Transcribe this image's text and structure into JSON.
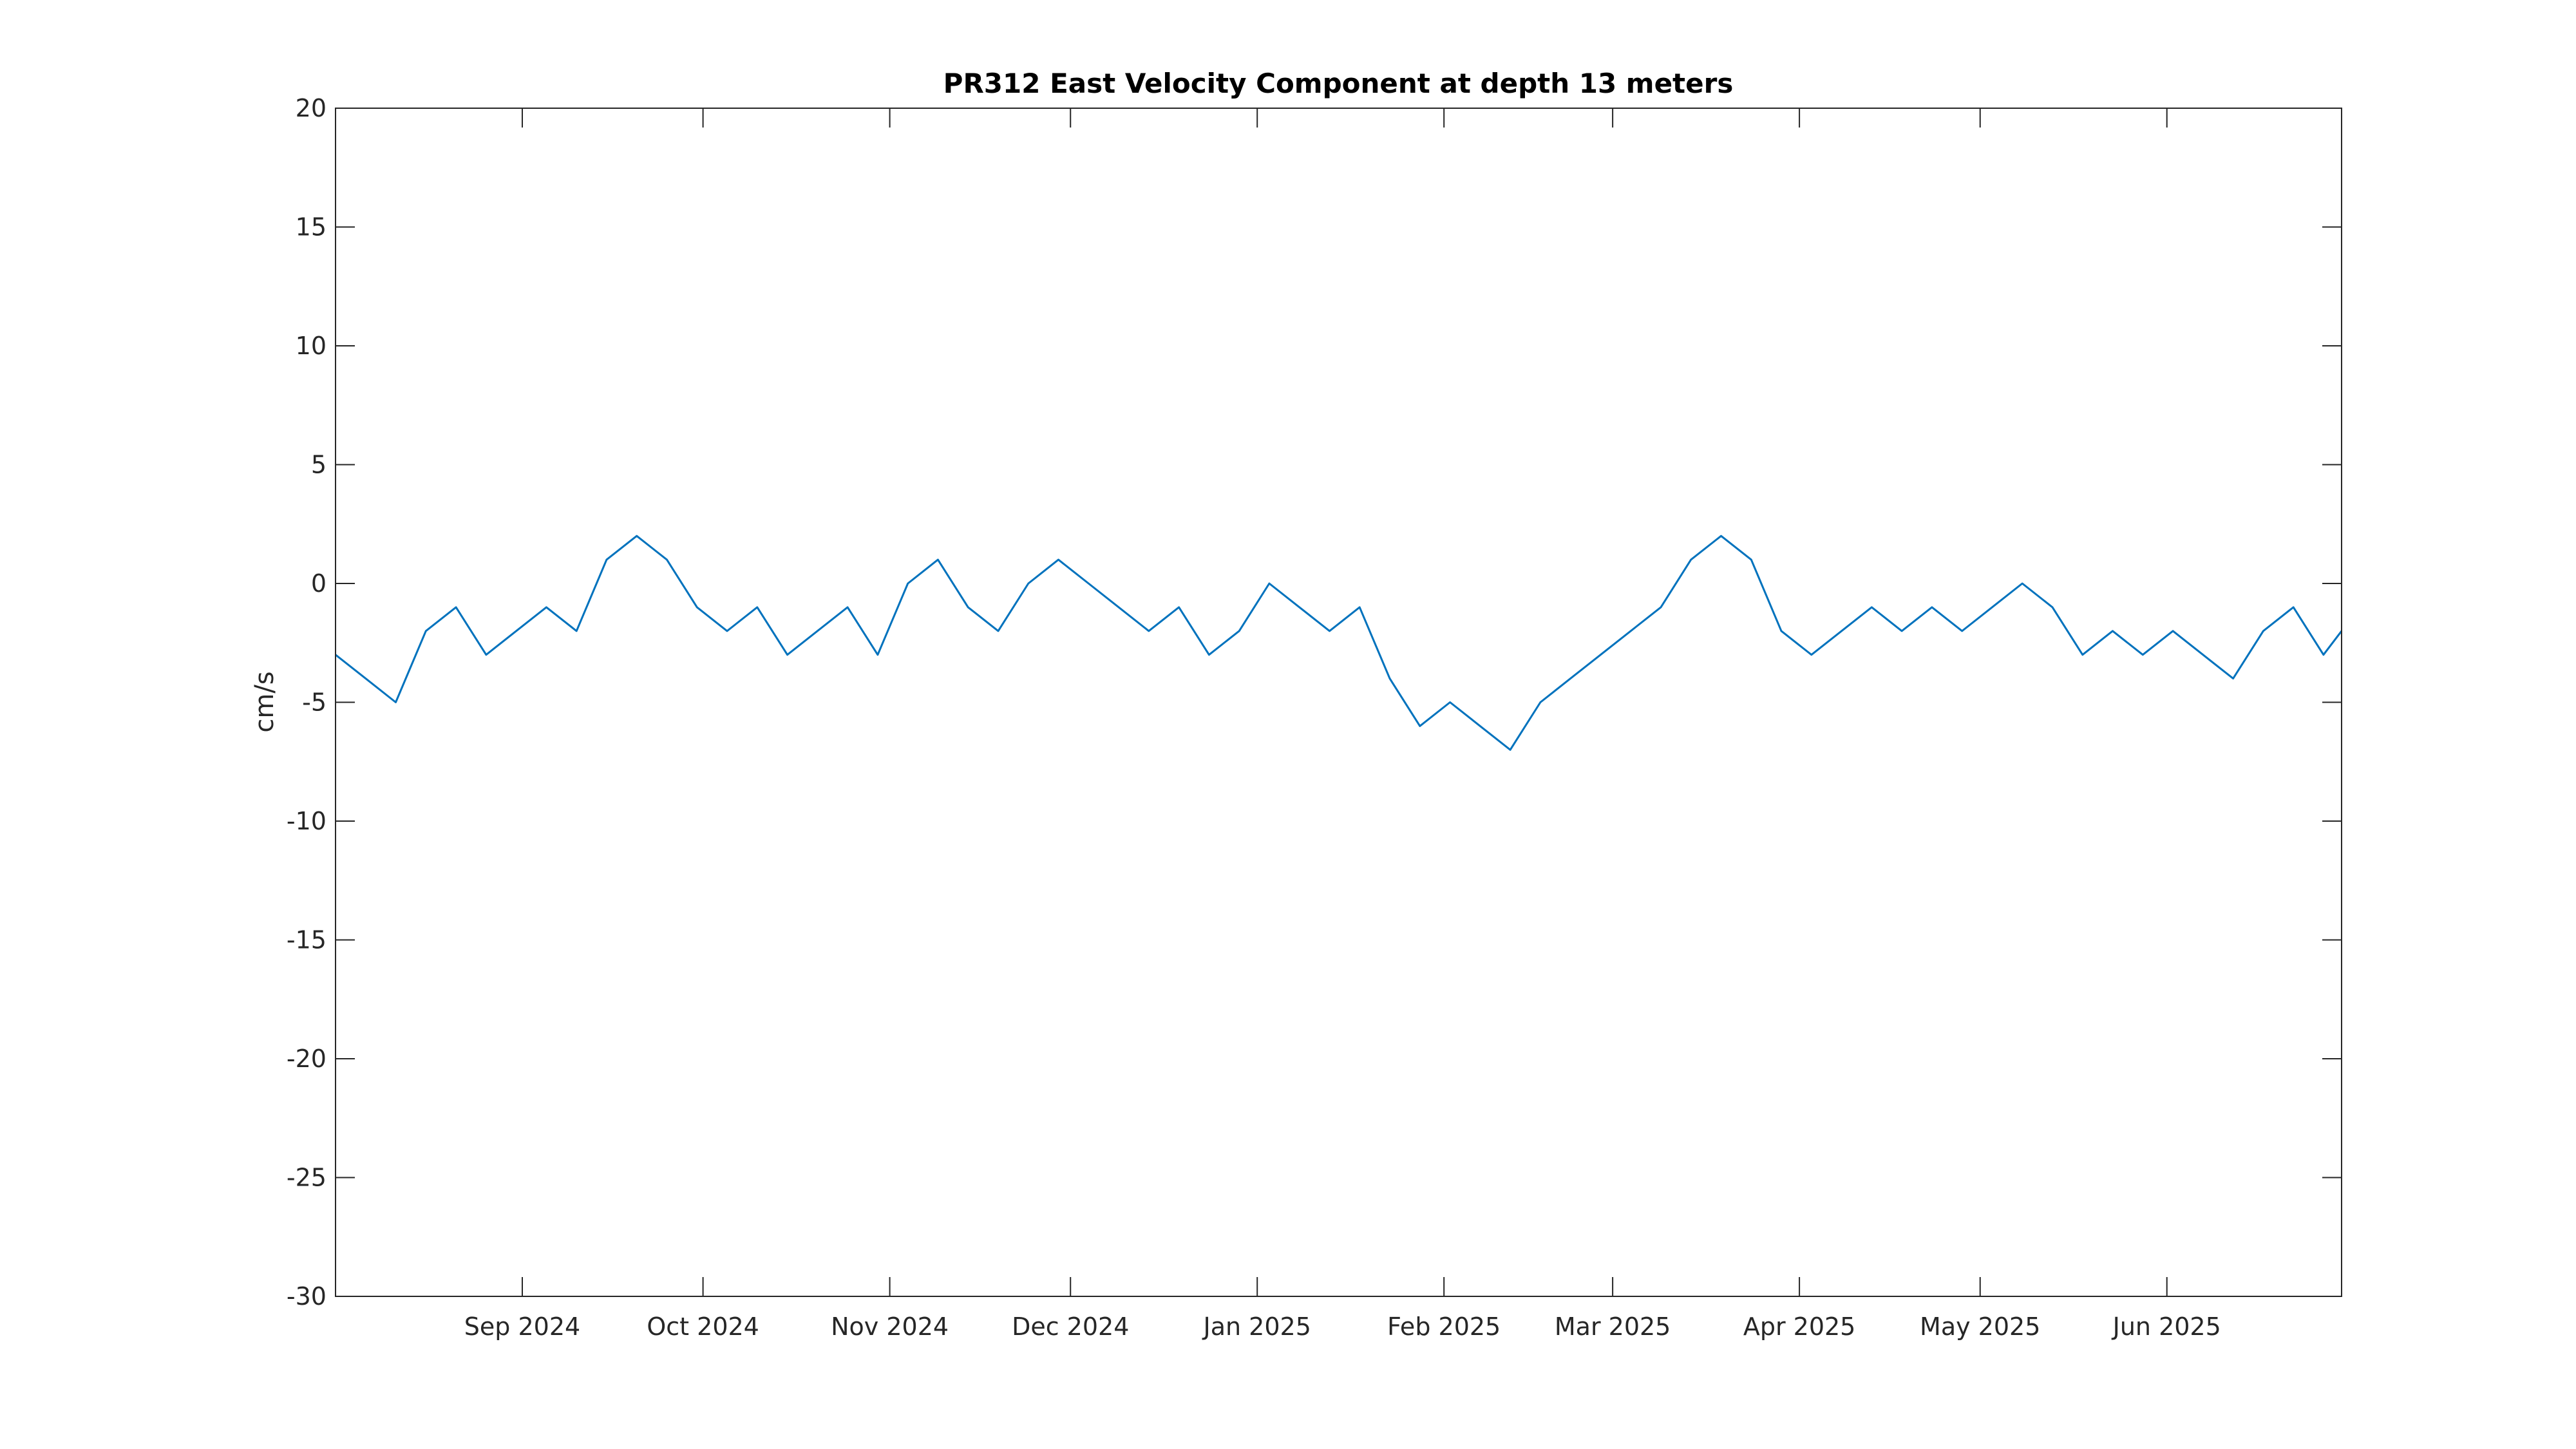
{
  "chart_data": {
    "type": "line",
    "title": "PR312 East Velocity Component at depth 13 meters",
    "xlabel": "",
    "ylabel": "cm/s",
    "xlim": [
      "2024-08-01",
      "2025-06-30"
    ],
    "ylim": [
      -30,
      20
    ],
    "yticks": [
      -30,
      -25,
      -20,
      -15,
      -10,
      -5,
      0,
      5,
      10,
      15,
      20
    ],
    "xticks": [
      {
        "date": "2024-09-01",
        "label": "Sep 2024"
      },
      {
        "date": "2024-10-01",
        "label": "Oct 2024"
      },
      {
        "date": "2024-11-01",
        "label": "Nov 2024"
      },
      {
        "date": "2024-12-01",
        "label": "Dec 2024"
      },
      {
        "date": "2025-01-01",
        "label": "Jan 2025"
      },
      {
        "date": "2025-02-01",
        "label": "Feb 2025"
      },
      {
        "date": "2025-03-01",
        "label": "Mar 2025"
      },
      {
        "date": "2025-04-01",
        "label": "Apr 2025"
      },
      {
        "date": "2025-05-01",
        "label": "May 2025"
      },
      {
        "date": "2025-06-01",
        "label": "Jun 2025"
      }
    ],
    "grid": false,
    "series_color": "#0072BD",
    "series": [
      {
        "x": [
          "2024-08-01",
          "2024-08-06",
          "2024-08-11",
          "2024-08-16",
          "2024-08-21",
          "2024-08-26",
          "2024-08-31",
          "2024-09-05",
          "2024-09-10",
          "2024-09-15",
          "2024-09-20",
          "2024-09-25",
          "2024-09-30",
          "2024-10-05",
          "2024-10-10",
          "2024-10-15",
          "2024-10-20",
          "2024-10-25",
          "2024-10-30",
          "2024-11-04",
          "2024-11-09",
          "2024-11-14",
          "2024-11-19",
          "2024-11-24",
          "2024-11-29",
          "2024-12-04",
          "2024-12-09",
          "2024-12-14",
          "2024-12-19",
          "2024-12-24",
          "2024-12-29",
          "2025-01-03",
          "2025-01-08",
          "2025-01-13",
          "2025-01-18",
          "2025-01-23",
          "2025-01-28",
          "2025-02-02",
          "2025-02-07",
          "2025-02-12",
          "2025-02-17",
          "2025-02-22",
          "2025-02-27",
          "2025-03-04",
          "2025-03-09",
          "2025-03-14",
          "2025-03-19",
          "2025-03-24",
          "2025-03-29",
          "2025-04-03",
          "2025-04-08",
          "2025-04-13",
          "2025-04-18",
          "2025-04-23",
          "2025-04-28",
          "2025-05-03",
          "2025-05-08",
          "2025-05-13",
          "2025-05-18",
          "2025-05-23",
          "2025-05-28",
          "2025-06-02",
          "2025-06-07",
          "2025-06-12",
          "2025-06-17",
          "2025-06-22",
          "2025-06-27",
          "2025-06-30"
        ],
        "y": [
          -3,
          -4,
          -5,
          -2,
          -1,
          -3,
          -2,
          -1,
          -2,
          1,
          2,
          1,
          -1,
          -2,
          -1,
          -3,
          -2,
          -1,
          -3,
          0,
          1,
          -1,
          -2,
          0,
          1,
          0,
          -1,
          -2,
          -1,
          -3,
          -2,
          0,
          -1,
          -2,
          -1,
          -4,
          -6,
          -5,
          -6,
          -7,
          -5,
          -4,
          -3,
          -2,
          -1,
          1,
          2,
          1,
          -2,
          -3,
          -2,
          -1,
          -2,
          -1,
          -2,
          -1,
          0,
          -1,
          -3,
          -2,
          -3,
          -2,
          -3,
          -4,
          -2,
          -1,
          -3,
          -2
        ]
      }
    ]
  }
}
